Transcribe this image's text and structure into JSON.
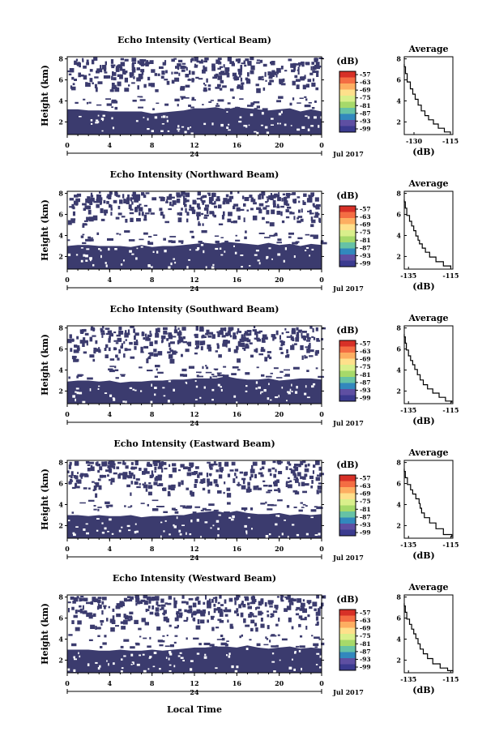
{
  "figure": {
    "x_axis_label": "Local Time",
    "date_label": "Jul 2017",
    "day_label": "24",
    "colorbar_unit": "(dB)",
    "colorbar_ticks": [
      "-57",
      "-63",
      "-69",
      "-75",
      "-81",
      "-87",
      "-93",
      "-99"
    ],
    "colorbar_colors": [
      "#d73027",
      "#f46d43",
      "#fdae61",
      "#fee08b",
      "#d9ef8b",
      "#a6d96a",
      "#66c2a5",
      "#3288bd",
      "#5e4fa2",
      "#3b3b8f"
    ],
    "field_color": "#3b3b6e",
    "average_title": "Average",
    "average_xlabel": "(dB)"
  },
  "chart_data": [
    {
      "type": "heatmap",
      "title": "Echo Intensity (Vertical Beam)",
      "ylabel": "Height (km)",
      "xlabel": "Local Time",
      "x_ticks": [
        "0",
        "4",
        "8",
        "12",
        "16",
        "20",
        "0"
      ],
      "y_ticks": [
        "2",
        "4",
        "6",
        "8"
      ],
      "xlim": [
        0,
        24
      ],
      "ylim": [
        0.8,
        8.2
      ],
      "low_echo_top_km": [
        3.2,
        3.2,
        3.1,
        3.1,
        3.0,
        3.0,
        3.0,
        3.0,
        2.8,
        2.9,
        3.0,
        3.1,
        3.3,
        3.3,
        3.4,
        3.2,
        3.4,
        3.3,
        3.2,
        3.1,
        3.2,
        3.3,
        3.0,
        3.2,
        3.0
      ]
    },
    {
      "type": "line",
      "title": "Average",
      "xlabel": "(dB)",
      "x_ticks": [
        "-130",
        "-115"
      ],
      "y_ticks": [
        "2",
        "4",
        "6",
        "8"
      ],
      "xlim": [
        -134,
        -114
      ],
      "ylim": [
        0.8,
        8.2
      ],
      "x": [
        -134,
        -133.5,
        -132.8,
        -131.5,
        -130.5,
        -129.5,
        -128.3,
        -127,
        -125.5,
        -124,
        -122,
        -120,
        -117.5,
        -115
      ],
      "y": [
        7.5,
        7.0,
        6.2,
        5.4,
        4.9,
        4.4,
        3.9,
        3.3,
        2.8,
        2.4,
        2.0,
        1.6,
        1.2,
        0.9
      ]
    },
    {
      "type": "heatmap",
      "title": "Echo Intensity (Northward Beam)",
      "ylabel": "Height (km)",
      "xlabel": "Local Time",
      "x_ticks": [
        "0",
        "4",
        "8",
        "12",
        "16",
        "20",
        "0"
      ],
      "y_ticks": [
        "2",
        "4",
        "6",
        "8"
      ],
      "xlim": [
        0,
        24
      ],
      "ylim": [
        0.8,
        8.2
      ],
      "low_echo_top_km": [
        3.0,
        3.1,
        3.1,
        3.0,
        3.0,
        3.0,
        2.9,
        3.1,
        2.9,
        3.0,
        3.0,
        3.1,
        3.2,
        3.3,
        3.2,
        3.4,
        3.3,
        3.2,
        3.1,
        3.3,
        3.1,
        3.2,
        3.0,
        3.2,
        3.1
      ]
    },
    {
      "type": "line",
      "title": "Average",
      "xlabel": "(dB)",
      "x_ticks": [
        "-135",
        "-115"
      ],
      "y_ticks": [
        "2",
        "4",
        "6",
        "8"
      ],
      "xlim": [
        -137,
        -114
      ],
      "ylim": [
        0.8,
        8.2
      ],
      "x": [
        -137,
        -136.5,
        -135.8,
        -134.5,
        -133.5,
        -132.5,
        -131.5,
        -130.5,
        -129.8,
        -128.5,
        -127,
        -125,
        -122,
        -118.5,
        -115
      ],
      "y": [
        7.4,
        7.0,
        6.2,
        5.6,
        5.1,
        4.7,
        4.2,
        3.7,
        3.4,
        3.0,
        2.6,
        2.2,
        1.7,
        1.3,
        0.9
      ]
    },
    {
      "type": "heatmap",
      "title": "Echo Intensity (Southward Beam)",
      "ylabel": "Height (km)",
      "xlabel": "Local Time",
      "x_ticks": [
        "0",
        "4",
        "8",
        "12",
        "16",
        "20",
        "0"
      ],
      "y_ticks": [
        "2",
        "4",
        "6",
        "8"
      ],
      "xlim": [
        0,
        24
      ],
      "ylim": [
        0.8,
        8.2
      ],
      "low_echo_top_km": [
        2.9,
        3.0,
        3.0,
        2.9,
        3.0,
        2.8,
        2.9,
        2.9,
        3.0,
        3.0,
        3.1,
        3.1,
        3.2,
        3.2,
        3.2,
        3.4,
        3.2,
        3.1,
        3.1,
        3.2,
        3.0,
        3.1,
        3.2,
        3.2,
        3.1
      ]
    },
    {
      "type": "line",
      "title": "Average",
      "xlabel": "(dB)",
      "x_ticks": [
        "-135",
        "-115"
      ],
      "y_ticks": [
        "2",
        "4",
        "6",
        "8"
      ],
      "xlim": [
        -137,
        -114
      ],
      "ylim": [
        0.8,
        8.2
      ],
      "x": [
        -137,
        -136.5,
        -136,
        -135,
        -134,
        -133,
        -132,
        -130.8,
        -129.5,
        -128,
        -126,
        -123.5,
        -120.5,
        -117.5,
        -114.5
      ],
      "y": [
        7.4,
        6.9,
        6.2,
        5.6,
        5.1,
        4.7,
        4.3,
        3.8,
        3.3,
        2.8,
        2.4,
        2.0,
        1.6,
        1.2,
        0.9
      ]
    },
    {
      "type": "heatmap",
      "title": "Echo Intensity (Eastward Beam)",
      "ylabel": "Height (km)",
      "xlabel": "Local Time",
      "x_ticks": [
        "0",
        "4",
        "8",
        "12",
        "16",
        "20",
        "0"
      ],
      "y_ticks": [
        "2",
        "4",
        "6",
        "8"
      ],
      "xlim": [
        0,
        24
      ],
      "ylim": [
        0.8,
        8.2
      ],
      "low_echo_top_km": [
        3.0,
        3.0,
        2.9,
        3.0,
        2.9,
        2.9,
        3.0,
        2.8,
        2.9,
        2.9,
        3.0,
        3.0,
        3.2,
        3.3,
        3.4,
        3.2,
        3.4,
        3.2,
        3.1,
        3.1,
        3.2,
        3.0,
        3.1,
        3.0,
        3.1
      ]
    },
    {
      "type": "line",
      "title": "Average",
      "xlabel": "(dB)",
      "x_ticks": [
        "-135",
        "-115"
      ],
      "y_ticks": [
        "2",
        "4",
        "6",
        "8"
      ],
      "xlim": [
        -137,
        -114
      ],
      "ylim": [
        0.8,
        8.2
      ],
      "x": [
        -137,
        -136.5,
        -135.5,
        -134,
        -133,
        -131.5,
        -130,
        -129.5,
        -128.8,
        -127.5,
        -125,
        -122,
        -118.5,
        -114.5
      ],
      "y": [
        7.4,
        6.9,
        6.2,
        5.6,
        5.2,
        4.8,
        4.3,
        3.9,
        3.4,
        3.0,
        2.5,
        2.0,
        1.4,
        0.9
      ]
    },
    {
      "type": "heatmap",
      "title": "Echo Intensity (Westward Beam)",
      "ylabel": "Height (km)",
      "xlabel": "Local Time",
      "x_ticks": [
        "0",
        "4",
        "8",
        "12",
        "16",
        "20",
        "0"
      ],
      "y_ticks": [
        "2",
        "4",
        "6",
        "8"
      ],
      "xlim": [
        0,
        24
      ],
      "ylim": [
        0.8,
        8.2
      ],
      "low_echo_top_km": [
        3.0,
        3.0,
        3.0,
        2.9,
        2.9,
        3.0,
        2.9,
        2.9,
        3.0,
        2.9,
        3.0,
        3.1,
        3.2,
        3.2,
        3.3,
        3.3,
        3.2,
        3.4,
        3.2,
        3.1,
        3.2,
        3.3,
        3.1,
        3.2,
        3.1
      ]
    },
    {
      "type": "line",
      "title": "Average",
      "xlabel": "(dB)",
      "x_ticks": [
        "-135",
        "-115"
      ],
      "y_ticks": [
        "2",
        "4",
        "6",
        "8"
      ],
      "xlim": [
        -137,
        -114
      ],
      "ylim": [
        0.8,
        8.2
      ],
      "x": [
        -137,
        -136.5,
        -135.8,
        -134.5,
        -133.5,
        -132.5,
        -131.5,
        -130.5,
        -129.5,
        -128,
        -126,
        -123.5,
        -120,
        -116.5,
        -114
      ],
      "y": [
        7.4,
        6.9,
        6.2,
        5.6,
        5.2,
        4.7,
        4.3,
        3.8,
        3.3,
        2.8,
        2.4,
        1.9,
        1.4,
        1.1,
        0.9
      ]
    }
  ]
}
